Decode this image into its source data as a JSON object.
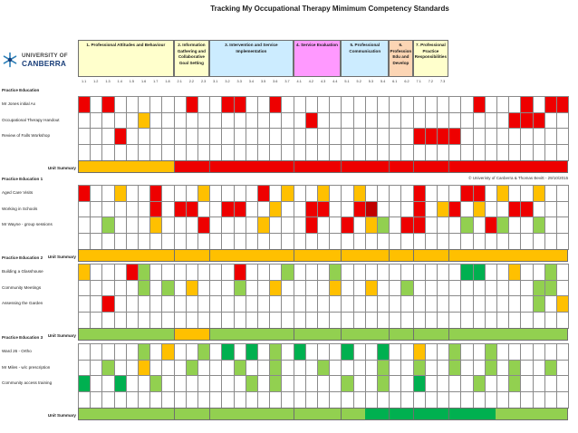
{
  "title": "Tracking My Occupational Therapy Mimimum Competency Standards",
  "logo": {
    "line1": "UNIVERSITY OF",
    "line2": "CANBERRA"
  },
  "copyright": "© Univeristy of Canberra & Thomas Bevitt - 29/10/2015",
  "summary_label": "Unit Summary",
  "colors": {
    "R": "#ee0000",
    "DR": "#c00000",
    "O": "#ffc000",
    "G": "#92d050",
    "DG": "#00b050",
    "W": "#ffffff"
  },
  "sections": [
    {
      "label": "1. Professional Attitudes and Behaviour",
      "bg": "#ffffcc",
      "subs": [
        "1.1",
        "1.2",
        "1.3",
        "1.4",
        "1.5",
        "1.6",
        "1.7",
        "1.8"
      ]
    },
    {
      "label": "2. Information Gathering and Collaborative Goal Setting",
      "bg": "#ffffcc",
      "subs": [
        "2.1",
        "2.2",
        "2.3"
      ]
    },
    {
      "label": "3. Intervention and Service Implementation",
      "bg": "#ccecff",
      "subs": [
        "3.1",
        "3.2",
        "3.3",
        "3.4",
        "3.5",
        "3.6",
        "3.7"
      ]
    },
    {
      "label": "4. Service Evaluation",
      "bg": "#ff99ff",
      "subs": [
        "4.1",
        "4.2",
        "4.3",
        "4.4"
      ]
    },
    {
      "label": "5. Professional Communication",
      "bg": "#ccecff",
      "subs": [
        "5.1",
        "5.2",
        "5.3",
        "5.4"
      ]
    },
    {
      "label": "6. Profession Edu and Develop",
      "bg": "#fcd5b4",
      "subs": [
        "6.1",
        "6.2"
      ]
    },
    {
      "label": "7. Professional Practice Responsibilities",
      "bg": "#ffffcc",
      "subs": [
        "7.1",
        "7.2",
        "7.3"
      ]
    }
  ],
  "blocks": [
    {
      "heading": "Practice Education",
      "rows": [
        {
          "label": "Mr Jones initial Ax",
          "cells": "R.R......R..RR..R................R...R.RR."
        },
        {
          "label": "Occupational Therapy Handout",
          "cells": ".....O.............R................RRR.."
        },
        {
          "label": "Review of Falls Workshop",
          "cells": "...R........................RRRR........"
        }
      ],
      "summary": "OOOOOOOORRRRRRRRRRRRRRRRRRRRRRRRRRRRRRRRR"
    },
    {
      "heading": "Practice Education 1",
      "rows": [
        {
          "label": "Aged Care Visits",
          "cells": "R..O..R...O....R.O..O..O....R...RR.O..O.."
        },
        {
          "label": "Working in Schools",
          "cells": "......R.RR..RR..O..RR..RDR...R.OR.O..RR.."
        },
        {
          "label": "Mr Wayne - group sessions",
          "cells": "..G...O...R....O...R..R.OG.RR...G.RG..G.."
        }
      ],
      "summary": "OOOOOOOOOOOOOOOOOOOOOOOOOOOOOOOOOOOOOOOOO"
    },
    {
      "heading": "Practice Education 2",
      "rows": [
        {
          "label": "Building a Glasshouse",
          "cells": "O...RG.......R...G...G..........DGDG..O..G."
        },
        {
          "label": "Community Meetings",
          "cells": ".....G.G.O...G..O....O..O..G..........GG."
        },
        {
          "label": "Assessing the Garden",
          "cells": "..R...................................G.O"
        }
      ],
      "summary": "GGGGGGGGOOOGGGGGGGGGGGGGGGGGGGGGGGGGGGGGG"
    },
    {
      "heading": "Practice Education 3",
      "rows": [
        {
          "label": "Ward 26 - Ortho",
          "cells": ".....G.O..G.DG.DG.G.DG...DG..DG..O..G..G."
        },
        {
          "label": "Mr Miles - w/c prescription",
          "cells": "..G..O...G...G..G...G....G..G..G..G.G..G."
        },
        {
          "label": "Community access training",
          "cells": "DG..DG..G.......G.G.....G..G..DG....G..G."
        }
      ],
      "summary": "GGGGGGGGGGGGGGGGGGGGGGGGDGDGDGDGDGDGDGDGDGDGDGGGGGGGGG"
    }
  ]
}
